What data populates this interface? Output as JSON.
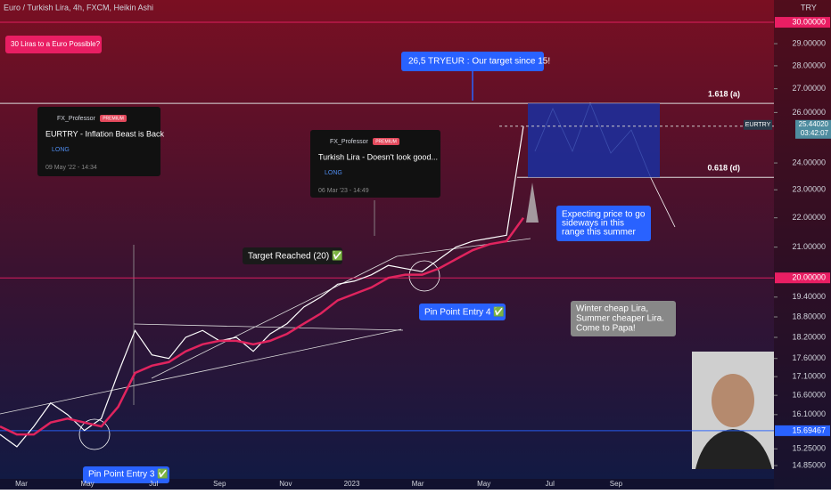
{
  "chart_data": {
    "type": "line",
    "title": "Euro / Turkish Lira, 4h, FXCM, Heikin Ashi",
    "currency": "TRY",
    "log_scale": true,
    "ylim": [
      14.54,
      31.08
    ],
    "yticks": [
      {
        "value": 29,
        "label": "29.00000"
      },
      {
        "value": 28,
        "label": "28.00000"
      },
      {
        "value": 27,
        "label": "27.00000"
      },
      {
        "value": 26,
        "label": "26.00000"
      },
      {
        "value": 24,
        "label": "24.00000"
      },
      {
        "value": 23,
        "label": "23.00000"
      },
      {
        "value": 22,
        "label": "22.00000"
      },
      {
        "value": 21,
        "label": "21.00000"
      },
      {
        "value": 19.4,
        "label": "19.40000"
      },
      {
        "value": 18.8,
        "label": "18.80000"
      },
      {
        "value": 18.2,
        "label": "18.20000"
      },
      {
        "value": 17.6,
        "label": "17.60000"
      },
      {
        "value": 17.1,
        "label": "17.10000"
      },
      {
        "value": 16.6,
        "label": "16.60000"
      },
      {
        "value": 16.1,
        "label": "16.10000"
      },
      {
        "value": 15.25,
        "label": "15.25000"
      },
      {
        "value": 14.85,
        "label": "14.85000"
      }
    ],
    "xticks": [
      "Mar",
      "May",
      "Jul",
      "Sep",
      "Nov",
      "2023",
      "Mar",
      "May",
      "Jul",
      "Sep"
    ],
    "price_labels": [
      {
        "value": 30,
        "label": "30.00000",
        "color": "#e91e63"
      },
      {
        "value": 20,
        "label": "20.00000",
        "color": "#e91e63"
      },
      {
        "value": 15.69467,
        "label": "15.69467",
        "color": "#2962ff"
      }
    ],
    "current_price": {
      "symbol": "EURTRY",
      "value": 25.4402,
      "label": "25.44020",
      "countdown": "03:42:07",
      "color": "#4f8da0"
    },
    "levels": [
      {
        "value": 26.38,
        "label": "1.618 (a)"
      },
      {
        "value": 23.46,
        "label": "0.618 (d)"
      }
    ],
    "series": [
      {
        "name": "EURTRY",
        "color": "#ffffff",
        "values": [
          15.6,
          15.3,
          15.8,
          16.4,
          16.1,
          15.7,
          16.0,
          17.2,
          18.4,
          17.7,
          17.6,
          18.2,
          18.4,
          18.1,
          18.2,
          17.8,
          18.3,
          18.6,
          19.1,
          19.4,
          19.8,
          19.9,
          20.1,
          20.4,
          20.3,
          20.2,
          20.6,
          21.0,
          21.2,
          21.3,
          21.4,
          25.44
        ]
      },
      {
        "color": "#e0245e",
        "values": [
          15.8,
          15.6,
          15.6,
          15.9,
          16.0,
          15.9,
          15.8,
          16.3,
          17.2,
          17.4,
          17.5,
          17.8,
          18.0,
          18.1,
          18.1,
          18.0,
          18.1,
          18.3,
          18.6,
          18.9,
          19.3,
          19.5,
          19.7,
          20.0,
          20.1,
          20.1,
          20.3,
          20.6,
          20.9,
          21.1,
          21.2,
          22.0
        ]
      }
    ],
    "annotations": {
      "question": "30 Liras to a Euro Possible?",
      "target": "26,5 TRYEUR : Our target since 15!",
      "target_reached": "Target Reached (20) ✅",
      "entry4": "Pin Point Entry 4 ✅",
      "entry3": "Pin Point Entry 3 ✅",
      "expect": [
        "Expecting price to go",
        "sideways in this",
        "range this summer"
      ],
      "papa": [
        "Winter cheap Lira,",
        "Summer cheaper Lira.",
        "Come to Papa!"
      ]
    },
    "ideas": [
      {
        "author": "FX_Professor",
        "badge": "PREMIUM",
        "title": "EURTRY - Inflation Beast is Back",
        "direction": "LONG",
        "date": "09 May '22 - 14:34"
      },
      {
        "author": "FX_Professor",
        "badge": "PREMIUM",
        "title": "Turkish Lira - Doesn't look good...",
        "direction": "LONG",
        "date": "06 Mar '23 - 14:49"
      }
    ]
  }
}
